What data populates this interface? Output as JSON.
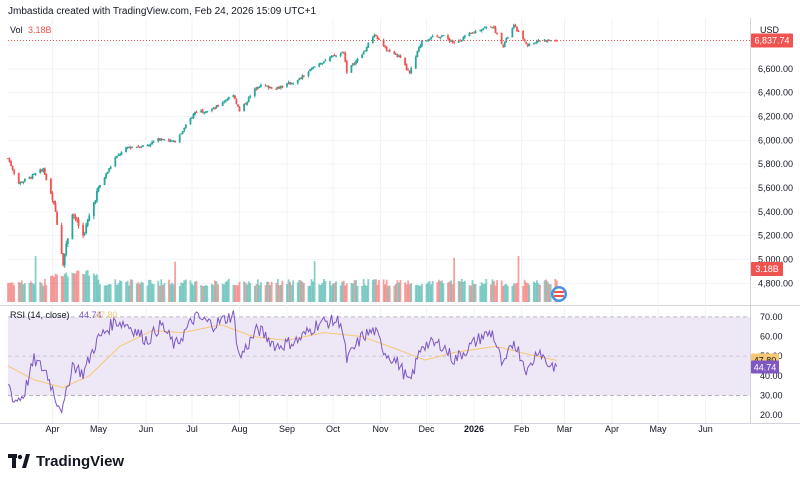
{
  "header": {
    "attribution": "Jmbastida created with TradingView.com, Feb 24, 2026 15:09 UTC+1"
  },
  "vol": {
    "label": "Vol",
    "value": "3.18B"
  },
  "currency": "USD",
  "rsi": {
    "label": "RSI (14, close)",
    "value": "44.74",
    "ma_value": "47.80"
  },
  "branding": {
    "logo_text": "TradingView"
  },
  "colors": {
    "up": "#26a69a",
    "down": "#ef5350",
    "rsi_line": "#7e57c2",
    "rsi_ma": "#f7c873",
    "rsi_band": "#ede7f6"
  },
  "chart_data": [
    {
      "type": "candlestick",
      "title": "",
      "y_axis": {
        "ticks": [
          4800,
          5000,
          5200,
          5400,
          5600,
          5800,
          6000,
          6200,
          6400,
          6600,
          6800
        ],
        "tick_labels": [
          "4,800.00",
          "5,000.00",
          "5,200.00",
          "5,400.00",
          "5,600.00",
          "5,800.00",
          "6,000.00",
          "6,200.00",
          "6,400.00",
          "6,600.00"
        ],
        "ylim": [
          4660,
          7010
        ]
      },
      "x_axis": {
        "tick_labels": [
          "Apr",
          "May",
          "Jun",
          "Jul",
          "Aug",
          "Sep",
          "Oct",
          "Nov",
          "Dec",
          "2026",
          "Feb",
          "Mar",
          "Apr",
          "May",
          "Jun"
        ],
        "tick_dates": [
          "2025-04-01",
          "2025-05-01",
          "2025-06-01",
          "2025-07-01",
          "2025-08-01",
          "2025-09-01",
          "2025-10-01",
          "2025-11-01",
          "2025-12-01",
          "2026-01-01",
          "2026-02-01",
          "2026-03-01",
          "2026-04-01",
          "2026-05-01",
          "2026-06-01"
        ],
        "start_date": "2025-03-03",
        "end_date": "2026-06-30"
      },
      "last_price": 6837.74,
      "last_price_label": "6,837.74",
      "close_path": [
        {
          "date": "2025-03-03",
          "close": 5850
        },
        {
          "date": "2025-03-10",
          "close": 5640
        },
        {
          "date": "2025-03-19",
          "close": 5700
        },
        {
          "date": "2025-03-26",
          "close": 5760
        },
        {
          "date": "2025-04-03",
          "close": 5400
        },
        {
          "date": "2025-04-08",
          "close": 4980
        },
        {
          "date": "2025-04-14",
          "close": 5400
        },
        {
          "date": "2025-04-21",
          "close": 5200
        },
        {
          "date": "2025-05-01",
          "close": 5600
        },
        {
          "date": "2025-05-12",
          "close": 5850
        },
        {
          "date": "2025-05-20",
          "close": 5940
        },
        {
          "date": "2025-06-02",
          "close": 5960
        },
        {
          "date": "2025-06-11",
          "close": 6020
        },
        {
          "date": "2025-06-20",
          "close": 5980
        },
        {
          "date": "2025-07-03",
          "close": 6240
        },
        {
          "date": "2025-07-15",
          "close": 6260
        },
        {
          "date": "2025-07-28",
          "close": 6390
        },
        {
          "date": "2025-08-01",
          "close": 6240
        },
        {
          "date": "2025-08-13",
          "close": 6460
        },
        {
          "date": "2025-08-25",
          "close": 6440
        },
        {
          "date": "2025-09-08",
          "close": 6500
        },
        {
          "date": "2025-09-22",
          "close": 6650
        },
        {
          "date": "2025-10-08",
          "close": 6740
        },
        {
          "date": "2025-10-10",
          "close": 6580
        },
        {
          "date": "2025-10-20",
          "close": 6720
        },
        {
          "date": "2025-10-28",
          "close": 6890
        },
        {
          "date": "2025-11-04",
          "close": 6770
        },
        {
          "date": "2025-11-13",
          "close": 6700
        },
        {
          "date": "2025-11-20",
          "close": 6560
        },
        {
          "date": "2025-11-28",
          "close": 6840
        },
        {
          "date": "2025-12-11",
          "close": 6880
        },
        {
          "date": "2025-12-19",
          "close": 6820
        },
        {
          "date": "2026-01-06",
          "close": 6940
        },
        {
          "date": "2026-01-13",
          "close": 6960
        },
        {
          "date": "2026-01-20",
          "close": 6800
        },
        {
          "date": "2026-01-27",
          "close": 6960
        },
        {
          "date": "2026-02-05",
          "close": 6800
        },
        {
          "date": "2026-02-12",
          "close": 6840
        },
        {
          "date": "2026-02-24",
          "close": 6837.74
        }
      ]
    },
    {
      "type": "bar",
      "title": "Volume",
      "last_value_label": "3.18B",
      "note": "daily volume bars colored by candle direction; spikes around 2025-03-21, 2025-06-20, 2025-09-19, 2025-12-19, 2026-01-30"
    },
    {
      "type": "line",
      "title": "RSI (14, close)",
      "y_axis": {
        "tick_labels": [
          "20.00",
          "30.00",
          "40.00",
          "50.00",
          "60.00",
          "70.00"
        ],
        "ylim": [
          17,
          74
        ]
      },
      "bands": [
        30,
        50,
        70
      ],
      "series": [
        {
          "name": "RSI",
          "last": 44.74,
          "points": [
            {
              "date": "2025-03-03",
              "v": 37
            },
            {
              "date": "2025-03-07",
              "v": 27
            },
            {
              "date": "2025-03-13",
              "v": 30
            },
            {
              "date": "2025-03-20",
              "v": 48
            },
            {
              "date": "2025-03-28",
              "v": 42
            },
            {
              "date": "2025-04-04",
              "v": 27
            },
            {
              "date": "2025-04-08",
              "v": 23
            },
            {
              "date": "2025-04-14",
              "v": 46
            },
            {
              "date": "2025-04-21",
              "v": 41
            },
            {
              "date": "2025-04-30",
              "v": 58
            },
            {
              "date": "2025-05-12",
              "v": 68
            },
            {
              "date": "2025-05-20",
              "v": 66
            },
            {
              "date": "2025-06-02",
              "v": 58
            },
            {
              "date": "2025-06-11",
              "v": 66
            },
            {
              "date": "2025-06-20",
              "v": 55
            },
            {
              "date": "2025-07-03",
              "v": 70
            },
            {
              "date": "2025-07-15",
              "v": 66
            },
            {
              "date": "2025-07-28",
              "v": 71
            },
            {
              "date": "2025-08-01",
              "v": 49
            },
            {
              "date": "2025-08-13",
              "v": 64
            },
            {
              "date": "2025-08-25",
              "v": 55
            },
            {
              "date": "2025-09-08",
              "v": 58
            },
            {
              "date": "2025-09-22",
              "v": 67
            },
            {
              "date": "2025-10-06",
              "v": 68
            },
            {
              "date": "2025-10-10",
              "v": 48
            },
            {
              "date": "2025-10-20",
              "v": 60
            },
            {
              "date": "2025-10-28",
              "v": 63
            },
            {
              "date": "2025-11-04",
              "v": 52
            },
            {
              "date": "2025-11-13",
              "v": 46
            },
            {
              "date": "2025-11-20",
              "v": 36
            },
            {
              "date": "2025-11-28",
              "v": 56
            },
            {
              "date": "2025-12-11",
              "v": 56
            },
            {
              "date": "2025-12-19",
              "v": 48
            },
            {
              "date": "2026-01-06",
              "v": 60
            },
            {
              "date": "2026-01-13",
              "v": 62
            },
            {
              "date": "2026-01-20",
              "v": 44
            },
            {
              "date": "2026-01-27",
              "v": 58
            },
            {
              "date": "2026-02-05",
              "v": 42
            },
            {
              "date": "2026-02-12",
              "v": 54
            },
            {
              "date": "2026-02-18",
              "v": 46
            },
            {
              "date": "2026-02-24",
              "v": 44.74
            }
          ]
        },
        {
          "name": "RSI MA",
          "last": 47.8,
          "points": [
            {
              "date": "2025-03-03",
              "v": 45
            },
            {
              "date": "2025-03-20",
              "v": 38
            },
            {
              "date": "2025-04-08",
              "v": 34
            },
            {
              "date": "2025-04-25",
              "v": 40
            },
            {
              "date": "2025-05-15",
              "v": 55
            },
            {
              "date": "2025-06-05",
              "v": 63
            },
            {
              "date": "2025-06-25",
              "v": 62
            },
            {
              "date": "2025-07-20",
              "v": 66
            },
            {
              "date": "2025-08-10",
              "v": 60
            },
            {
              "date": "2025-09-01",
              "v": 58
            },
            {
              "date": "2025-09-25",
              "v": 62
            },
            {
              "date": "2025-10-20",
              "v": 60
            },
            {
              "date": "2025-11-10",
              "v": 54
            },
            {
              "date": "2025-11-30",
              "v": 48
            },
            {
              "date": "2025-12-20",
              "v": 52
            },
            {
              "date": "2026-01-15",
              "v": 55
            },
            {
              "date": "2026-02-05",
              "v": 51
            },
            {
              "date": "2026-02-24",
              "v": 47.8
            }
          ]
        }
      ]
    }
  ]
}
